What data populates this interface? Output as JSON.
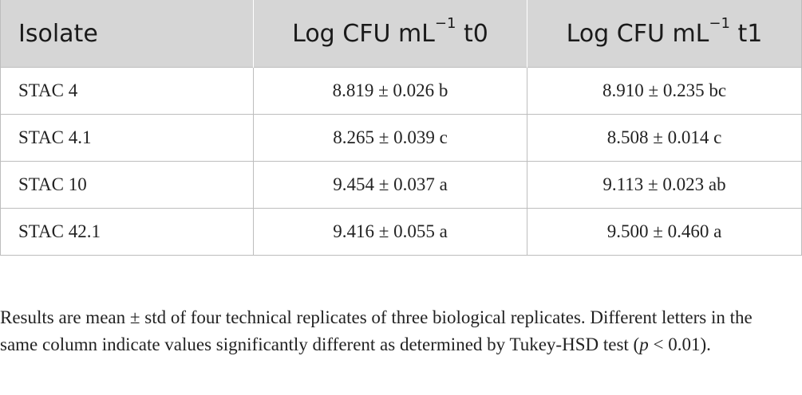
{
  "table": {
    "headers": [
      {
        "text": "Isolate",
        "sup": ""
      },
      {
        "text": "Log CFU mL",
        "sup": "−1",
        "suffix": " t0"
      },
      {
        "text": "Log CFU mL",
        "sup": "−1",
        "suffix": " t1"
      }
    ],
    "rows": [
      {
        "isolate": "STAC 4",
        "t0": "8.819 ± 0.026 b",
        "t1": "8.910 ± 0.235 bc"
      },
      {
        "isolate": "STAC 4.1",
        "t0": "8.265 ± 0.039 c",
        "t1": "8.508 ± 0.014 c"
      },
      {
        "isolate": "STAC 10",
        "t0": "9.454 ± 0.037 a",
        "t1": "9.113 ± 0.023 ab"
      },
      {
        "isolate": "STAC 42.1",
        "t0": "9.416 ± 0.055 a",
        "t1": "9.500 ± 0.460 a"
      }
    ]
  },
  "footnote": {
    "part1": "Results are mean ± std of four technical replicates of three biological replicates. Different letters in the same column indicate values significantly different as determined by Tukey-HSD test (",
    "p": "p",
    "part2": " < 0.01)."
  }
}
